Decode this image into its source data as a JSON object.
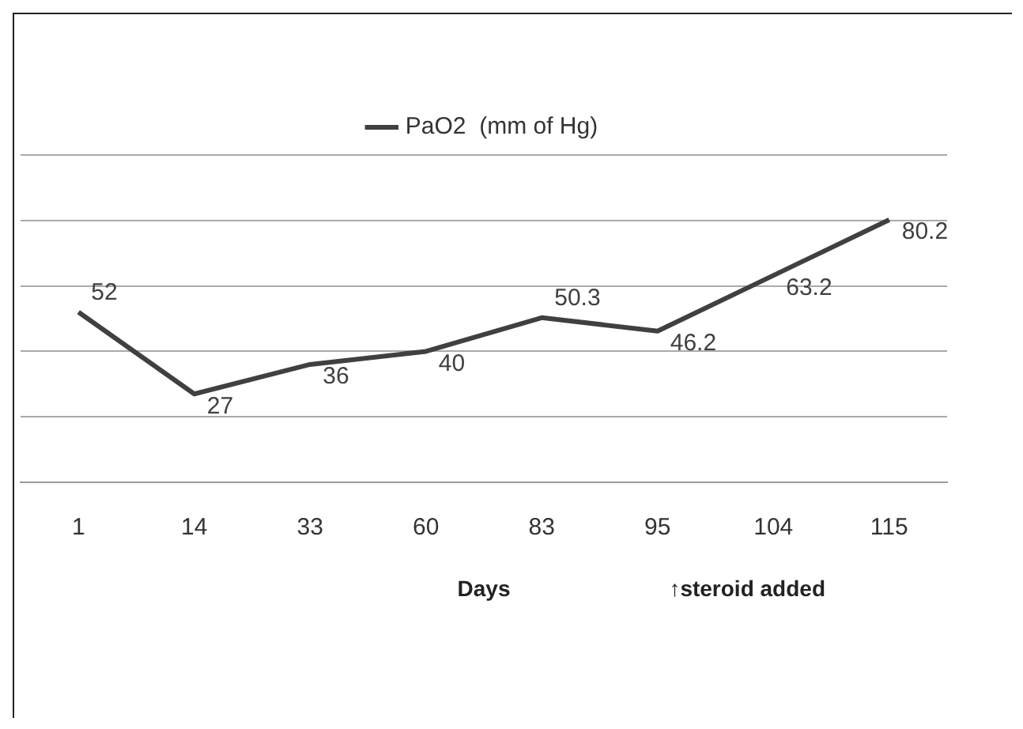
{
  "chart_data": {
    "type": "line",
    "xlabel": "Days",
    "categories": [
      "1",
      "14",
      "33",
      "60",
      "83",
      "95",
      "104",
      "115"
    ],
    "series": [
      {
        "name": "PaO2  (mm of Hg)",
        "color": "#404040",
        "values": [
          52,
          27,
          36,
          40,
          50.3,
          46.2,
          63.2,
          80.2
        ]
      }
    ],
    "ylim": [
      0,
      100
    ],
    "yticks": [
      0,
      20,
      40,
      60,
      80,
      100
    ],
    "tick_labels": "x",
    "grid": "y",
    "legend": "top",
    "marker": "none",
    "line_style": "solid",
    "data_labels": true,
    "annotations": [
      "↑steroid added"
    ]
  }
}
